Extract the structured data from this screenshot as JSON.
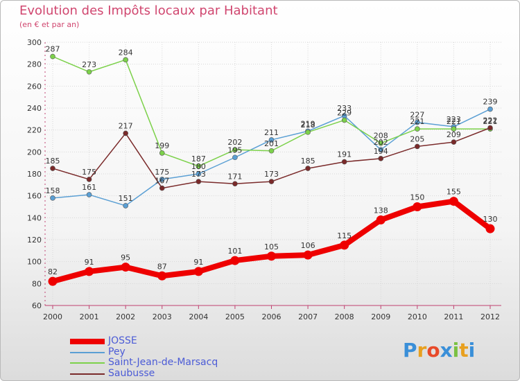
{
  "title": "Evolution des Impôts locaux par Habitant",
  "subtitle": "(en € et par an)",
  "logo": {
    "letters": [
      "P",
      "r",
      "o",
      "x",
      "i",
      "t",
      "i"
    ],
    "colors": [
      "#3a8fd8",
      "#e8a020",
      "#e84a2a",
      "#3a8fd8",
      "#7ac142",
      "#e8a020",
      "#3a8fd8"
    ]
  },
  "chart_data": {
    "type": "line",
    "title": "Evolution des Impôts locaux par Habitant",
    "ylabel": "(en € et par an)",
    "xlabel": "",
    "ylim": [
      60,
      300
    ],
    "yticks": [
      60,
      80,
      100,
      120,
      140,
      160,
      180,
      200,
      220,
      240,
      260,
      280,
      300
    ],
    "categories": [
      "2000",
      "2001",
      "2002",
      "2003",
      "2004",
      "2005",
      "2006",
      "2007",
      "2008",
      "2009",
      "2010",
      "2011",
      "2012"
    ],
    "grid": true,
    "legend_position": "bottom-left",
    "series": [
      {
        "name": "JOSSE",
        "color": "#ee0000",
        "width": 8,
        "values": [
          82,
          91,
          95,
          87,
          91,
          101,
          105,
          106,
          115,
          138,
          150,
          155,
          130
        ],
        "labels": [
          "82",
          "91",
          "95",
          "87",
          "91",
          "101",
          "105",
          "106",
          "115",
          "138",
          "150",
          "155",
          "130"
        ]
      },
      {
        "name": "Pey",
        "color": "#5a9fd4",
        "width": 1.5,
        "values": [
          158,
          161,
          151,
          175,
          180,
          195,
          211,
          219,
          233,
          202,
          227,
          223,
          239
        ],
        "labels": [
          "158",
          "161",
          "151",
          "175",
          "180",
          "195",
          "211",
          "219",
          "233",
          "202",
          "227",
          "223",
          "239"
        ]
      },
      {
        "name": "Saint-Jean-de-Marsacq",
        "color": "#7cd14a",
        "width": 1.5,
        "values": [
          287,
          273,
          284,
          199,
          187,
          202,
          201,
          218,
          229,
          208,
          221,
          221,
          221
        ],
        "labels": [
          "287",
          "273",
          "284",
          "199",
          "187",
          "202",
          "201",
          "218",
          "229",
          "208",
          "221",
          "221",
          "221"
        ]
      },
      {
        "name": "Saubusse",
        "color": "#7a2a2a",
        "width": 1.5,
        "values": [
          185,
          175,
          217,
          167,
          173,
          171,
          173,
          185,
          191,
          194,
          205,
          209,
          222
        ],
        "labels": [
          "185",
          "175",
          "217",
          "167",
          "173",
          "171",
          "173",
          "185",
          "191",
          "194",
          "205",
          "209",
          "222"
        ]
      }
    ]
  }
}
